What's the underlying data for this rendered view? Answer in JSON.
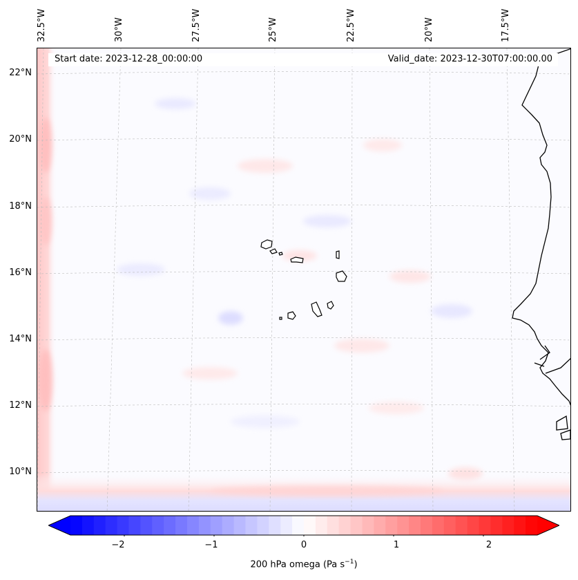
{
  "map": {
    "start_date_label": "Start date: 2023-12-28_00:00:00",
    "valid_date_label": "Valid_date: 2023-12-30T07:00:00.00",
    "longitude_labels": [
      "32.5°W",
      "30°W",
      "27.5°W",
      "25°W",
      "22.5°W",
      "20°W",
      "17.5°W"
    ],
    "latitude_labels": [
      "22°N",
      "20°N",
      "18°N",
      "16°N",
      "14°N",
      "12°N",
      "10°N"
    ],
    "field": "200 hPa omega",
    "colormap": "bwr",
    "coastline_color": "#000000",
    "gridline_color": "#bbbbbb"
  },
  "colorbar": {
    "ticks": [
      "−2",
      "−1",
      "0",
      "1",
      "2"
    ],
    "range": [
      -2.6,
      2.6
    ],
    "extend": "both",
    "label_text": "200 hPa omega (Pa s",
    "label_sup": "−1",
    "label_close": ")"
  }
}
